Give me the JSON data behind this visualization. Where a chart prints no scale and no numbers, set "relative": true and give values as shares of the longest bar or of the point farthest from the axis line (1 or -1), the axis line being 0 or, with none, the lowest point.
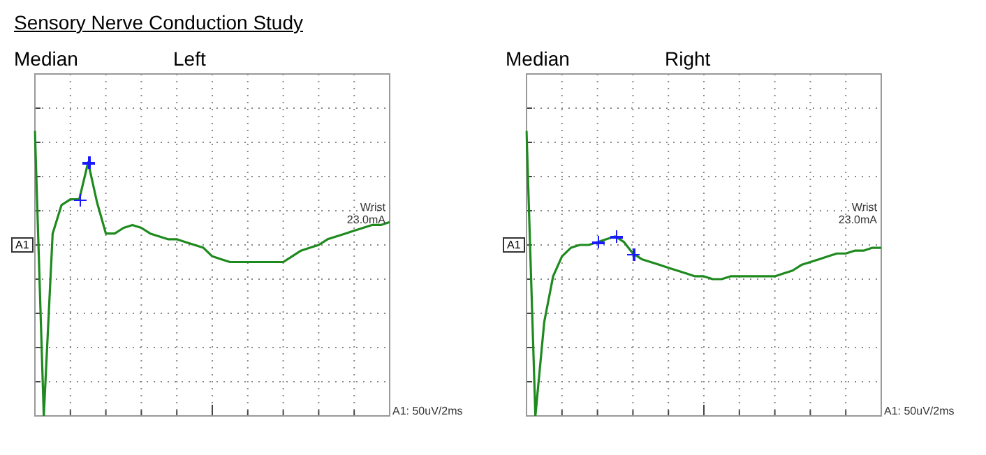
{
  "chart_data": [
    {
      "type": "line",
      "title": "Median",
      "subtitle": "Left",
      "relative": true,
      "grid": true,
      "legend": false,
      "annotations": [
        "Sensory Nerve Conduction Study",
        "A1",
        "Wrist",
        "23.0mA",
        "A1: 50uV/2ms"
      ],
      "categories": [
        null,
        null,
        null,
        null,
        null,
        null,
        null,
        null,
        null,
        null,
        null,
        null,
        null,
        null,
        null,
        null,
        null,
        null,
        null,
        null,
        null,
        null,
        null,
        null,
        null,
        null,
        null,
        null,
        null,
        null,
        null,
        null,
        null,
        null,
        null,
        null,
        null,
        null,
        null,
        null,
        null
      ],
      "series": [
        {
          "marker": "none",
          "color": "#1e8a1e",
          "values": [
            1.0,
            0.0,
            0.64,
            0.74,
            0.76,
            0.76,
            0.89,
            0.75,
            0.64,
            0.64,
            0.66,
            0.67,
            0.66,
            0.64,
            0.63,
            0.62,
            0.62,
            0.61,
            0.6,
            0.59,
            0.56,
            0.55,
            0.54,
            0.54,
            0.54,
            0.54,
            0.54,
            0.54,
            0.54,
            0.56,
            0.58,
            0.59,
            0.6,
            0.62,
            0.63,
            0.64,
            0.65,
            0.66,
            0.67,
            0.67,
            0.68
          ]
        }
      ]
    },
    {
      "type": "line",
      "title": "Median",
      "subtitle": "Right",
      "relative": true,
      "grid": true,
      "legend": false,
      "annotations": [
        "A1",
        "Wrist",
        "23.0mA",
        "A1: 50uV/2ms"
      ],
      "categories": [
        null,
        null,
        null,
        null,
        null,
        null,
        null,
        null,
        null,
        null,
        null,
        null,
        null,
        null,
        null,
        null,
        null,
        null,
        null,
        null,
        null,
        null,
        null,
        null,
        null,
        null,
        null,
        null,
        null,
        null,
        null,
        null,
        null,
        null,
        null,
        null,
        null,
        null,
        null,
        null,
        null
      ],
      "series": [
        {
          "marker": "none",
          "color": "#1e8a1e",
          "values": [
            1.0,
            0.0,
            0.33,
            0.49,
            0.56,
            0.59,
            0.6,
            0.6,
            0.61,
            0.62,
            0.63,
            0.61,
            0.57,
            0.55,
            0.54,
            0.53,
            0.52,
            0.51,
            0.5,
            0.49,
            0.49,
            0.48,
            0.48,
            0.49,
            0.49,
            0.49,
            0.49,
            0.49,
            0.49,
            0.5,
            0.51,
            0.53,
            0.54,
            0.55,
            0.56,
            0.57,
            0.57,
            0.58,
            0.58,
            0.59,
            0.59
          ]
        }
      ]
    }
  ]
}
